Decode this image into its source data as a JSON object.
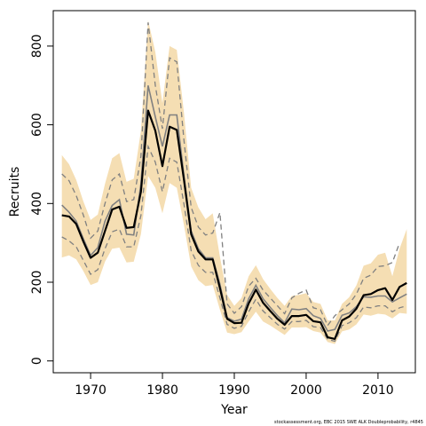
{
  "chart_data": {
    "type": "line",
    "xlabel": "Year",
    "ylabel": "Recruits",
    "xlim": [
      1964.8,
      2015.2
    ],
    "ylim": [
      -30,
      890
    ],
    "xticks": [
      "1970",
      "1980",
      "1990",
      "2000",
      "2010"
    ],
    "yticks": [
      "0",
      "200",
      "400",
      "600",
      "800"
    ],
    "caption": "stockassessment.org, EBC 2015 SWE ALK Doubleprobability, r4845",
    "grid": false,
    "legend": "none",
    "colors": {
      "band": "#f5deb3",
      "estimate": "#000000",
      "series": "#808080"
    },
    "years": [
      1966,
      1967,
      1968,
      1969,
      1970,
      1971,
      1972,
      1973,
      1974,
      1975,
      1976,
      1977,
      1978,
      1979,
      1980,
      1981,
      1982,
      1983,
      1984,
      1985,
      1986,
      1987,
      1988,
      1989,
      1990,
      1991,
      1992,
      1993,
      1994,
      1995,
      1996,
      1997,
      1998,
      1999,
      2000,
      2001,
      2002,
      2003,
      2004,
      2005,
      2006,
      2007,
      2008,
      2009,
      2010,
      2011,
      2012,
      2013,
      2014
    ],
    "estimate": [
      370,
      367,
      348,
      303,
      262,
      275,
      330,
      385,
      392,
      338,
      340,
      430,
      636,
      585,
      495,
      595,
      587,
      460,
      322,
      278,
      258,
      258,
      185,
      107,
      96,
      97,
      146,
      181,
      148,
      127,
      107,
      92,
      114,
      114,
      117,
      101,
      98,
      60,
      56,
      103,
      113,
      133,
      167,
      170,
      180,
      185,
      155,
      188,
      198
    ],
    "band_upper": [
      523,
      500,
      460,
      405,
      358,
      372,
      450,
      515,
      528,
      455,
      463,
      585,
      865,
      785,
      655,
      800,
      790,
      630,
      440,
      390,
      360,
      375,
      265,
      168,
      140,
      160,
      215,
      243,
      208,
      183,
      160,
      140,
      165,
      168,
      172,
      150,
      145,
      103,
      103,
      145,
      162,
      192,
      242,
      248,
      270,
      275,
      215,
      285,
      335
    ],
    "band_lower": [
      263,
      268,
      258,
      228,
      193,
      200,
      252,
      285,
      288,
      250,
      252,
      322,
      470,
      440,
      375,
      452,
      440,
      345,
      240,
      205,
      190,
      193,
      130,
      72,
      68,
      73,
      100,
      125,
      100,
      90,
      78,
      66,
      85,
      85,
      86,
      76,
      72,
      48,
      43,
      75,
      80,
      93,
      118,
      115,
      120,
      118,
      108,
      122,
      120
    ],
    "series": [
      {
        "values": [
          396,
          378,
          355,
          310,
          268,
          288,
          355,
          395,
          410,
          322,
          320,
          450,
          700,
          620,
          545,
          625,
          625,
          470,
          330,
          285,
          262,
          262,
          195,
          110,
          101,
          106,
          158,
          192,
          158,
          136,
          115,
          97,
          132,
          130,
          133,
          115,
          108,
          76,
          80,
          116,
          122,
          138,
          163,
          162,
          165,
          165,
          150,
          160,
          170
        ]
      },
      {
        "values": [
          315,
          305,
          290,
          255,
          220,
          232,
          285,
          328,
          335,
          290,
          290,
          370,
          545,
          505,
          430,
          515,
          505,
          398,
          280,
          243,
          225,
          225,
          160,
          93,
          83,
          88,
          125,
          157,
          127,
          110,
          93,
          81,
          100,
          100,
          103,
          87,
          85,
          55,
          50,
          90,
          97,
          110,
          137,
          135,
          140,
          140,
          125,
          135,
          140
        ]
      },
      {
        "values": [
          475,
          458,
          420,
          370,
          312,
          330,
          400,
          460,
          475,
          405,
          410,
          520,
          860,
          700,
          590,
          770,
          760,
          560,
          390,
          340,
          320,
          325,
          377,
          145,
          121,
          138,
          190,
          210,
          180,
          160,
          140,
          120,
          160,
          172,
          180,
          135,
          130,
          90,
          115,
          130,
          145,
          170,
          210,
          218,
          240,
          242,
          250,
          300
        ]
      }
    ]
  }
}
